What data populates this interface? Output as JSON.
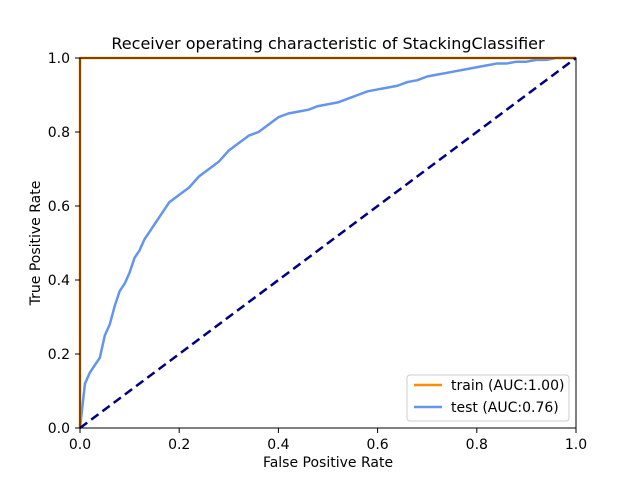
{
  "chart_data": {
    "type": "line",
    "title": "Receiver operating characteristic of StackingClassifier",
    "xlabel": "False Positive Rate",
    "ylabel": "True Positive Rate",
    "xlim": [
      0.0,
      1.0
    ],
    "ylim": [
      0.0,
      1.0
    ],
    "x_ticks": [
      "0.0",
      "0.2",
      "0.4",
      "0.6",
      "0.8",
      "1.0"
    ],
    "y_ticks": [
      "0.0",
      "0.2",
      "0.4",
      "0.6",
      "0.8",
      "1.0"
    ],
    "grid": false,
    "legend_position": "lower-right",
    "series": [
      {
        "name": "train (AUC:1.00)",
        "color": "#ff8c00",
        "style": "solid",
        "x": [
          0.0,
          0.0,
          0.5,
          1.0
        ],
        "y": [
          0.0,
          1.0,
          1.0,
          1.0
        ]
      },
      {
        "name": "test (AUC:0.76)",
        "color": "#6495ed",
        "style": "solid",
        "x": [
          0.0,
          0.005,
          0.01,
          0.02,
          0.03,
          0.04,
          0.05,
          0.06,
          0.07,
          0.08,
          0.09,
          0.1,
          0.11,
          0.12,
          0.13,
          0.14,
          0.15,
          0.16,
          0.18,
          0.2,
          0.22,
          0.24,
          0.26,
          0.28,
          0.3,
          0.32,
          0.34,
          0.36,
          0.38,
          0.4,
          0.42,
          0.44,
          0.46,
          0.48,
          0.5,
          0.52,
          0.54,
          0.56,
          0.58,
          0.6,
          0.62,
          0.64,
          0.66,
          0.68,
          0.7,
          0.72,
          0.74,
          0.76,
          0.78,
          0.8,
          0.82,
          0.84,
          0.86,
          0.88,
          0.9,
          0.92,
          0.94,
          0.96,
          0.98,
          1.0
        ],
        "y": [
          0.0,
          0.06,
          0.12,
          0.15,
          0.17,
          0.19,
          0.25,
          0.28,
          0.33,
          0.37,
          0.39,
          0.42,
          0.46,
          0.48,
          0.51,
          0.53,
          0.55,
          0.57,
          0.61,
          0.63,
          0.65,
          0.68,
          0.7,
          0.72,
          0.75,
          0.77,
          0.79,
          0.8,
          0.82,
          0.84,
          0.85,
          0.855,
          0.86,
          0.87,
          0.875,
          0.88,
          0.89,
          0.9,
          0.91,
          0.915,
          0.92,
          0.925,
          0.935,
          0.94,
          0.95,
          0.955,
          0.96,
          0.965,
          0.97,
          0.975,
          0.98,
          0.985,
          0.985,
          0.99,
          0.99,
          0.995,
          0.995,
          1.0,
          1.0,
          1.0
        ]
      },
      {
        "name": "",
        "color": "#000080",
        "style": "dashed",
        "x": [
          0.0,
          1.0
        ],
        "y": [
          0.0,
          1.0
        ]
      }
    ]
  }
}
